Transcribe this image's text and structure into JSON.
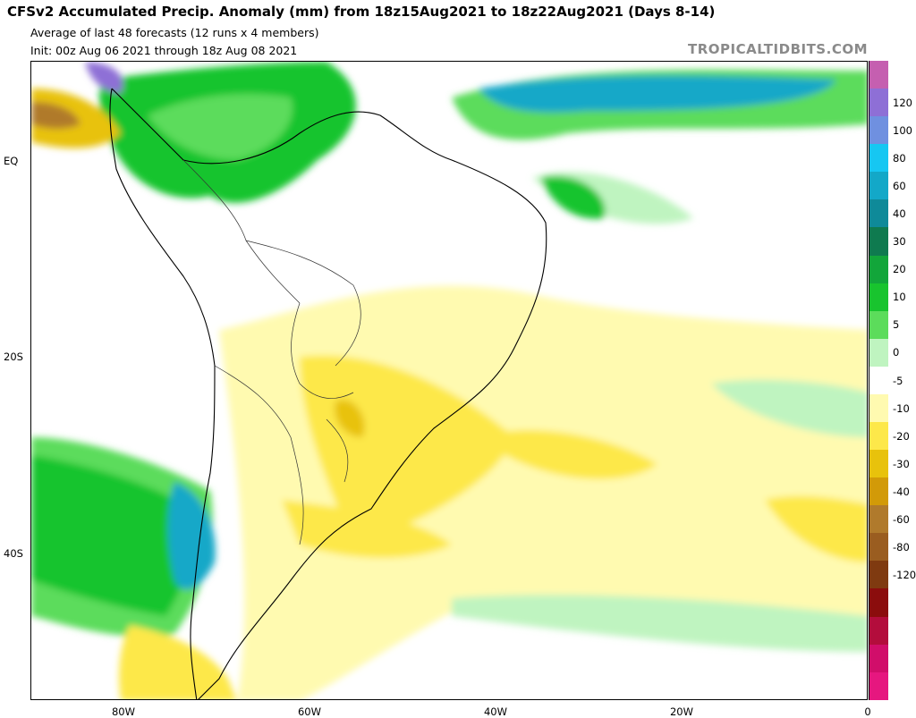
{
  "header": {
    "title": "CFSv2 Accumulated Precip. Anomaly (mm) from 18z15Aug2021 to 18z22Aug2021 (Days 8-14)",
    "subtitle": "Average of last 48 forecasts (12 runs x 4 members)",
    "init": "Init: 00z Aug 06 2021 through 18z Aug 08 2021",
    "brand": "TROPICALTIDBITS.COM"
  },
  "axes": {
    "lat_labels": [
      "EQ",
      "20S",
      "40S"
    ],
    "lon_labels": [
      "80W",
      "60W",
      "40W",
      "20W",
      "0"
    ]
  },
  "colorbar": {
    "labels": [
      "120",
      "100",
      "80",
      "60",
      "40",
      "30",
      "20",
      "10",
      "5",
      "0",
      "-5",
      "-10",
      "-20",
      "-30",
      "-40",
      "-60",
      "-80",
      "-120"
    ],
    "colors": [
      "#c55fb0",
      "#8e6fd6",
      "#6f90e0",
      "#16c7f2",
      "#13a8c8",
      "#0f8a99",
      "#0f7a4f",
      "#12a63a",
      "#18c42e",
      "#5cdc5b",
      "#bff4c0",
      "#ffffff",
      "#fffab0",
      "#fde84a",
      "#e8c20c",
      "#d29a08",
      "#b07a2c",
      "#9a5d20",
      "#7f3a10",
      "#8b0d0d",
      "#b30d3c",
      "#d10e6a",
      "#e6177f"
    ]
  },
  "chart_data": {
    "type": "heatmap",
    "title": "CFSv2 Accumulated Precip. Anomaly (mm) from 18z15Aug2021 to 18z22Aug2021 (Days 8-14)",
    "units": "mm",
    "lon_range": [
      -90,
      0
    ],
    "lat_range": [
      -55,
      10
    ],
    "color_levels": [
      -120,
      -80,
      -60,
      -40,
      -30,
      -20,
      -10,
      -5,
      0,
      5,
      10,
      20,
      30,
      40,
      60,
      80,
      100,
      120
    ],
    "regions": [
      {
        "name": "Southern Chile / SE Pacific",
        "anomaly": "positive",
        "approx": "20 to 40"
      },
      {
        "name": "Amazon / northern South America",
        "anomaly": "positive",
        "approx": "5 to 20"
      },
      {
        "name": "Tropical Atlantic (ITCZ)",
        "anomaly": "positive",
        "approx": "10 to 60"
      },
      {
        "name": "Northwest Colombia / Panama",
        "anomaly": "negative",
        "approx": "-20 to -40"
      },
      {
        "name": "Southern Brazil / Uruguay / NE Argentina",
        "anomaly": "negative",
        "approx": "-5 to -10"
      },
      {
        "name": "South Atlantic",
        "anomaly": "negative",
        "approx": "-5 to -10"
      },
      {
        "name": "Southern Patagonia",
        "anomaly": "negative",
        "approx": "-5 to -20"
      }
    ]
  }
}
